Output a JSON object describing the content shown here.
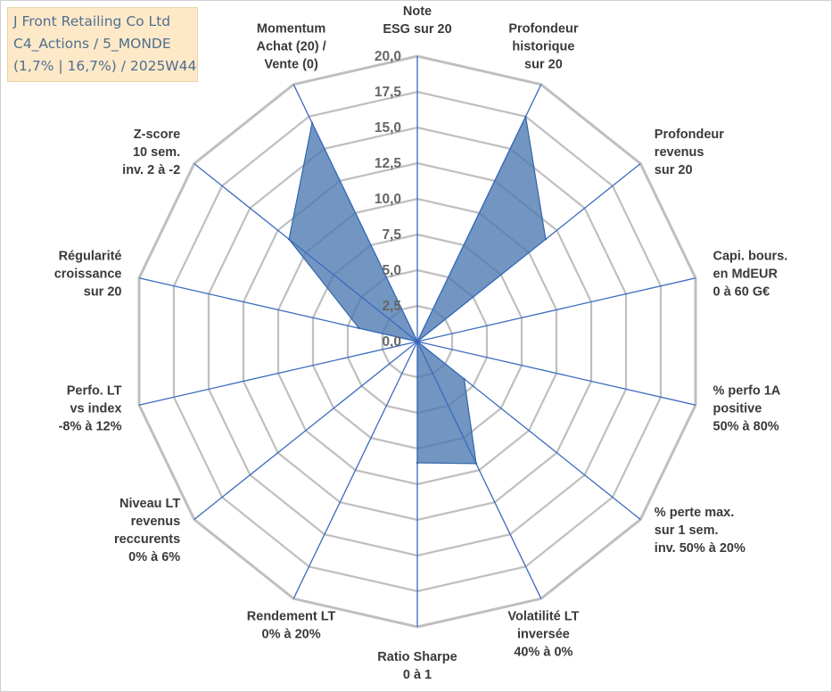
{
  "header": {
    "company": "J Front Retailing Co Ltd",
    "portfolio": "C4_Actions / 5_MONDE",
    "range_week": "(1,7% | 16,7%) / 2025W44"
  },
  "colors": {
    "fill": "#4a78b0",
    "stroke": "#3366aa",
    "grid": "#bfbfbf",
    "spoke": "#3a6bbf"
  },
  "chart_data": {
    "type": "radar",
    "title": "J Front Retailing Co Ltd",
    "ylim": [
      0,
      20
    ],
    "ticks": [
      "0,0",
      "2,5",
      "5,0",
      "7,5",
      "10,0",
      "12,5",
      "15,0",
      "17,5",
      "20,0"
    ],
    "axes": [
      {
        "label": [
          "Note",
          "ESG sur 20"
        ],
        "value": 0
      },
      {
        "label": [
          "Profondeur",
          "historique",
          "sur 20"
        ],
        "value": 17.5
      },
      {
        "label": [
          "Profondeur",
          "revenus",
          "sur 20"
        ],
        "value": 11.5
      },
      {
        "label": [
          "Capi. bours.",
          "en MdEUR",
          "0 à 60 G€"
        ],
        "value": 0
      },
      {
        "label": [
          "% perfo 1A",
          "positive",
          "50% à 80%"
        ],
        "value": 0
      },
      {
        "label": [
          "% perte max.",
          "sur 1 sem.",
          "inv. 50% à 20%"
        ],
        "value": 4.2
      },
      {
        "label": [
          "Volatilité LT",
          "inversée",
          "40% à 0%"
        ],
        "value": 9.5
      },
      {
        "label": [
          "Ratio Sharpe",
          "0 à 1"
        ],
        "value": 8.5
      },
      {
        "label": [
          "Rendement LT",
          "0% à 20%"
        ],
        "value": 0
      },
      {
        "label": [
          "Niveau LT",
          "revenus",
          "reccurents",
          "0% à 6%"
        ],
        "value": 0
      },
      {
        "label": [
          "Perfo. LT",
          "vs index",
          "-8% à 12%"
        ],
        "value": 0
      },
      {
        "label": [
          "Régularité",
          "croissance",
          "sur 20"
        ],
        "value": 4.2
      },
      {
        "label": [
          "Z-score",
          "10 sem.",
          "inv. 2 à -2"
        ],
        "value": 11.5
      },
      {
        "label": [
          "Momentum",
          "Achat (20) /",
          "Vente (0)"
        ],
        "value": 17.0
      }
    ]
  }
}
